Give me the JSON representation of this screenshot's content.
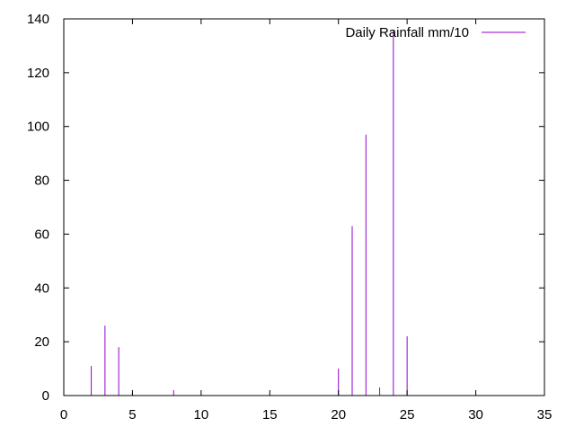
{
  "chart_data": {
    "type": "bar",
    "style": "impulses",
    "series": [
      {
        "name": "Daily Rainfall mm/10",
        "color": "#9400d3",
        "x": [
          2,
          3,
          4,
          5,
          8,
          20,
          21,
          22,
          23,
          24,
          25
        ],
        "values": [
          11,
          26,
          18,
          1,
          2,
          10,
          63,
          97,
          3,
          136,
          22
        ]
      }
    ],
    "xlim": [
      0,
      35
    ],
    "ylim": [
      0,
      140
    ],
    "xticks": [
      "0",
      "5",
      "10",
      "15",
      "20",
      "25",
      "30",
      "35"
    ],
    "yticks": [
      "0",
      "20",
      "40",
      "60",
      "80",
      "100",
      "120",
      "140"
    ],
    "grid": false,
    "legend_position": "top-right",
    "title": "",
    "xlabel": "",
    "ylabel": ""
  }
}
